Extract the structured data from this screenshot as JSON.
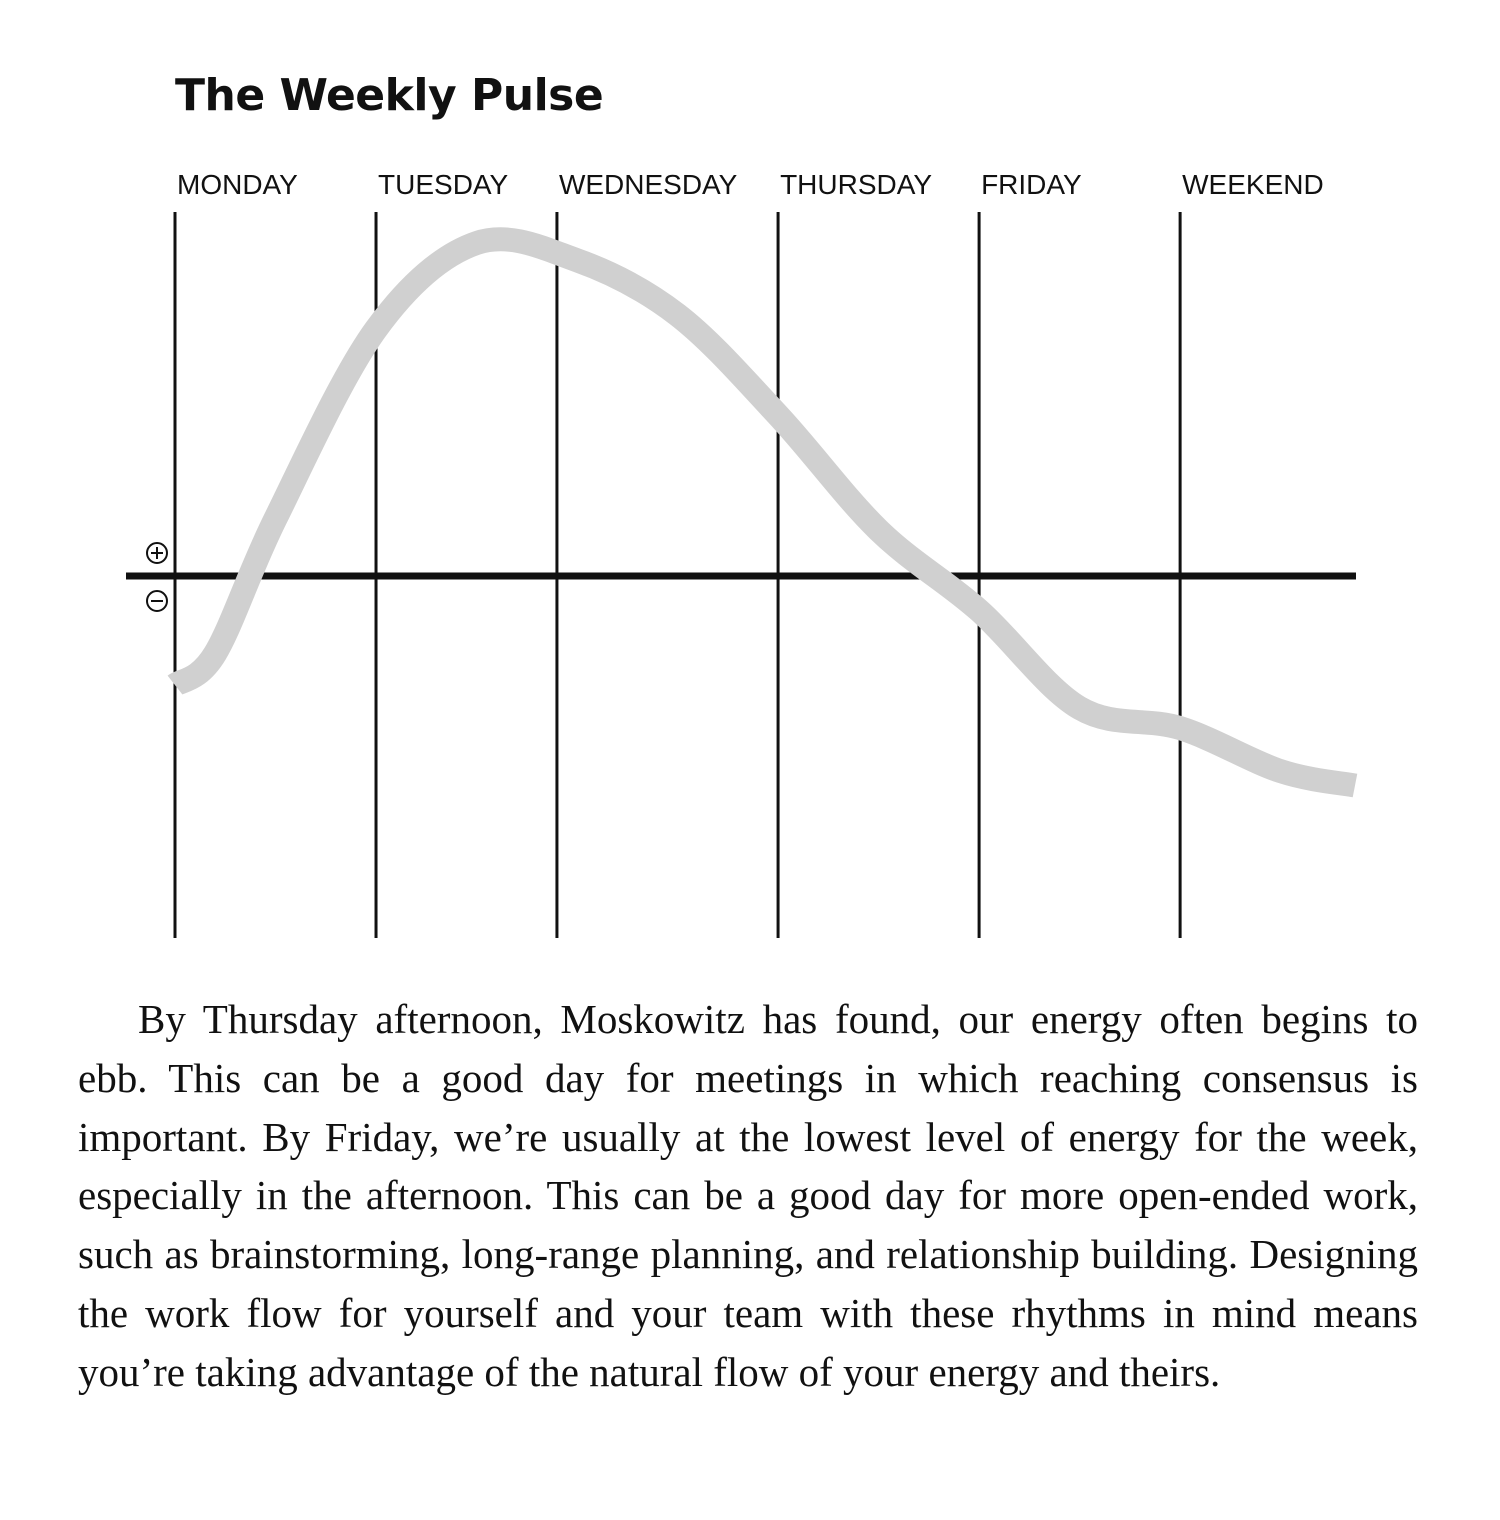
{
  "chart_data": {
    "type": "line",
    "title": "The Weekly Pulse",
    "categories": [
      "MONDAY",
      "TUESDAY",
      "WEDNESDAY",
      "THURSDAY",
      "FRIDAY",
      "WEEKEND"
    ],
    "axis_markers": {
      "positive": "⊕",
      "negative": "⊖"
    },
    "xlim": [
      0,
      5.87
    ],
    "ylim": [
      -1.3,
      1.3
    ],
    "grid": true,
    "legend": "none",
    "series": [
      {
        "color": "#d0d0d0",
        "x": [
          0,
          0.2,
          0.5,
          1.0,
          1.5,
          2.0,
          2.5,
          3.0,
          3.5,
          4.0,
          4.5,
          5.0,
          5.5,
          5.87
        ],
        "y": [
          -0.38,
          -0.27,
          0.2,
          0.86,
          1.16,
          1.1,
          0.91,
          0.56,
          0.16,
          -0.12,
          -0.46,
          -0.53,
          -0.68,
          -0.73
        ]
      }
    ]
  },
  "body": {
    "paragraph": "By Thursday afternoon, Moskowitz has found, our energy often begins to ebb. This can be a good day for meetings in which reaching consensus is important. By Friday, we’re usually at the lowest level of energy for the week, especially in the afternoon. This can be a good day for more open-ended work, such as brainstorming, long-range planning, and relationship building. Designing the work flow for yourself and your team with these rhythms in mind means you’re taking advantage of the natural flow of your energy and theirs."
  }
}
